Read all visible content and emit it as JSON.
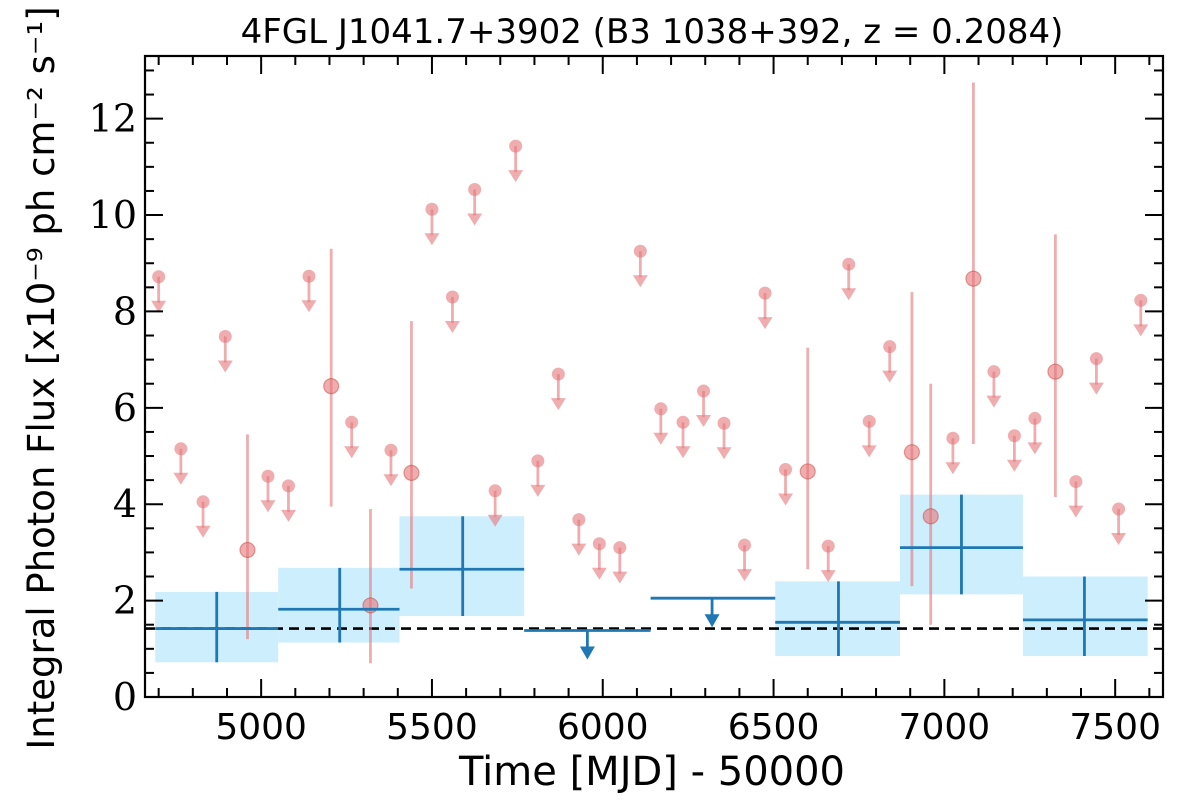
{
  "chart_data": {
    "type": "scatter",
    "title": "4FGL J1041.7+3902 (B3 1038+392, z = 0.2084)",
    "xlabel": "Time [MJD] - 50000",
    "ylabel": "Integral Photon Flux [x10⁻⁹ ph cm⁻² s⁻¹]",
    "xlim": [
      4660,
      7640
    ],
    "ylim": [
      0,
      13.3
    ],
    "x_ticks": [
      5000,
      5500,
      6000,
      6500,
      7000,
      7500
    ],
    "x_tick_labels": [
      "5000",
      "5500",
      "6000",
      "6500",
      "7000",
      "7500"
    ],
    "y_ticks": [
      0,
      2,
      4,
      6,
      8,
      10,
      12
    ],
    "y_tick_labels": [
      "0",
      "2",
      "4",
      "6",
      "8",
      "10",
      "12"
    ],
    "grid": false,
    "reference_line": {
      "y": 1.42,
      "style": "dashed",
      "color": "#000000"
    },
    "colors": {
      "short_bins": "#e5767a",
      "long_bins": "#1f77b4",
      "long_bins_fill": "#cdeefc"
    },
    "series": [
      {
        "color_key": "short_bins",
        "detections": [
          {
            "x": 4960,
            "y": 3.05,
            "ylo": 1.2,
            "yhi": 5.45
          },
          {
            "x": 5205,
            "y": 6.45,
            "ylo": 3.95,
            "yhi": 9.3
          },
          {
            "x": 5320,
            "y": 1.9,
            "ylo": 0.7,
            "yhi": 3.9
          },
          {
            "x": 5440,
            "y": 4.65,
            "ylo": 2.25,
            "yhi": 7.8
          },
          {
            "x": 6600,
            "y": 4.68,
            "ylo": 2.65,
            "yhi": 7.25
          },
          {
            "x": 6905,
            "y": 5.08,
            "ylo": 2.3,
            "yhi": 8.4
          },
          {
            "x": 6960,
            "y": 3.75,
            "ylo": 1.5,
            "yhi": 6.5
          },
          {
            "x": 7085,
            "y": 8.68,
            "ylo": 5.25,
            "yhi": 12.75
          },
          {
            "x": 7325,
            "y": 6.75,
            "ylo": 4.15,
            "yhi": 9.6
          }
        ],
        "upper_limits": [
          {
            "x": 4700,
            "y": 8.72
          },
          {
            "x": 4765,
            "y": 5.15
          },
          {
            "x": 4830,
            "y": 4.05
          },
          {
            "x": 4895,
            "y": 7.48
          },
          {
            "x": 5020,
            "y": 4.58
          },
          {
            "x": 5080,
            "y": 4.38
          },
          {
            "x": 5140,
            "y": 8.73
          },
          {
            "x": 5265,
            "y": 5.7
          },
          {
            "x": 5380,
            "y": 5.12
          },
          {
            "x": 5500,
            "y": 10.12
          },
          {
            "x": 5560,
            "y": 8.3
          },
          {
            "x": 5625,
            "y": 10.53
          },
          {
            "x": 5685,
            "y": 4.28
          },
          {
            "x": 5745,
            "y": 11.43
          },
          {
            "x": 5810,
            "y": 4.9
          },
          {
            "x": 5870,
            "y": 6.7
          },
          {
            "x": 5930,
            "y": 3.68
          },
          {
            "x": 5990,
            "y": 3.18
          },
          {
            "x": 6050,
            "y": 3.1
          },
          {
            "x": 6110,
            "y": 9.25
          },
          {
            "x": 6170,
            "y": 5.98
          },
          {
            "x": 6235,
            "y": 5.7
          },
          {
            "x": 6295,
            "y": 6.35
          },
          {
            "x": 6355,
            "y": 5.68
          },
          {
            "x": 6415,
            "y": 3.15
          },
          {
            "x": 6475,
            "y": 8.38
          },
          {
            "x": 6535,
            "y": 4.72
          },
          {
            "x": 6660,
            "y": 3.13
          },
          {
            "x": 6720,
            "y": 8.98
          },
          {
            "x": 6780,
            "y": 5.72
          },
          {
            "x": 6840,
            "y": 7.27
          },
          {
            "x": 7025,
            "y": 5.37
          },
          {
            "x": 7145,
            "y": 6.75
          },
          {
            "x": 7205,
            "y": 5.42
          },
          {
            "x": 7265,
            "y": 5.78
          },
          {
            "x": 7385,
            "y": 4.47
          },
          {
            "x": 7445,
            "y": 7.02
          },
          {
            "x": 7510,
            "y": 3.9
          },
          {
            "x": 7575,
            "y": 8.23
          }
        ]
      },
      {
        "color_key": "long_bins",
        "detections": [
          {
            "x0": 4690,
            "x1": 5050,
            "x": 4870,
            "y": 1.42,
            "ylo": 0.72,
            "yhi": 2.18
          },
          {
            "x0": 5050,
            "x1": 5405,
            "x": 5230,
            "y": 1.82,
            "ylo": 1.13,
            "yhi": 2.68
          },
          {
            "x0": 5405,
            "x1": 5770,
            "x": 5590,
            "y": 2.65,
            "ylo": 1.68,
            "yhi": 3.75
          },
          {
            "x0": 6505,
            "x1": 6870,
            "x": 6690,
            "y": 1.55,
            "ylo": 0.85,
            "yhi": 2.4
          },
          {
            "x0": 6870,
            "x1": 7230,
            "x": 7050,
            "y": 3.1,
            "ylo": 2.13,
            "yhi": 4.2
          },
          {
            "x0": 7230,
            "x1": 7595,
            "x": 7410,
            "y": 1.6,
            "ylo": 0.85,
            "yhi": 2.5
          }
        ],
        "upper_limits": [
          {
            "x0": 5770,
            "x1": 6140,
            "x": 5955,
            "y": 1.38
          },
          {
            "x0": 6140,
            "x1": 6505,
            "x": 6320,
            "y": 2.05
          }
        ]
      }
    ]
  }
}
